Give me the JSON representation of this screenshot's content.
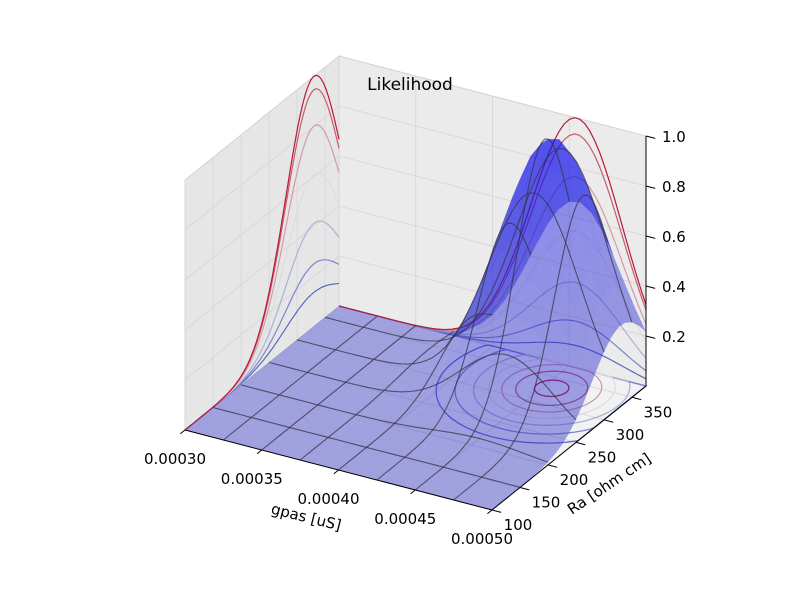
{
  "chart_data": {
    "type": "surface3d",
    "title": "Likelihood",
    "xlabel": "gpas [uS]",
    "ylabel": "Ra [ohm cm]",
    "zlabel": "",
    "x_ticks": [
      "0.00030",
      "0.00035",
      "0.00040",
      "0.00045",
      "0.00050"
    ],
    "y_ticks": [
      "100",
      "150",
      "200",
      "250",
      "300",
      "350"
    ],
    "z_ticks": [
      "0.2",
      "0.4",
      "0.6",
      "0.8",
      "1.0"
    ],
    "xlim": [
      0.0003,
      0.0005
    ],
    "ylim": [
      100,
      375
    ],
    "zlim": [
      0,
      1.0
    ],
    "grid": true,
    "surface": {
      "color": "#4444ee",
      "alpha": 0.45,
      "peak_x": 0.000455,
      "peak_y": 330,
      "sigma_x": 3e-05,
      "sigma_y": 50,
      "x_ridge_lines": [
        0.000325,
        0.00035,
        0.000375,
        0.0004,
        0.000425,
        0.00045,
        0.000475
      ],
      "y_ridge_lines": [
        150,
        200,
        250,
        300,
        350
      ]
    },
    "contours": {
      "colormap": "coolwarm",
      "levels": [
        0.1,
        0.2,
        0.35,
        0.5,
        0.65,
        0.8,
        0.95
      ]
    },
    "colors": {
      "cold": "#3b4cc0",
      "warm": "#b40426",
      "mid": "#dddddd"
    }
  }
}
